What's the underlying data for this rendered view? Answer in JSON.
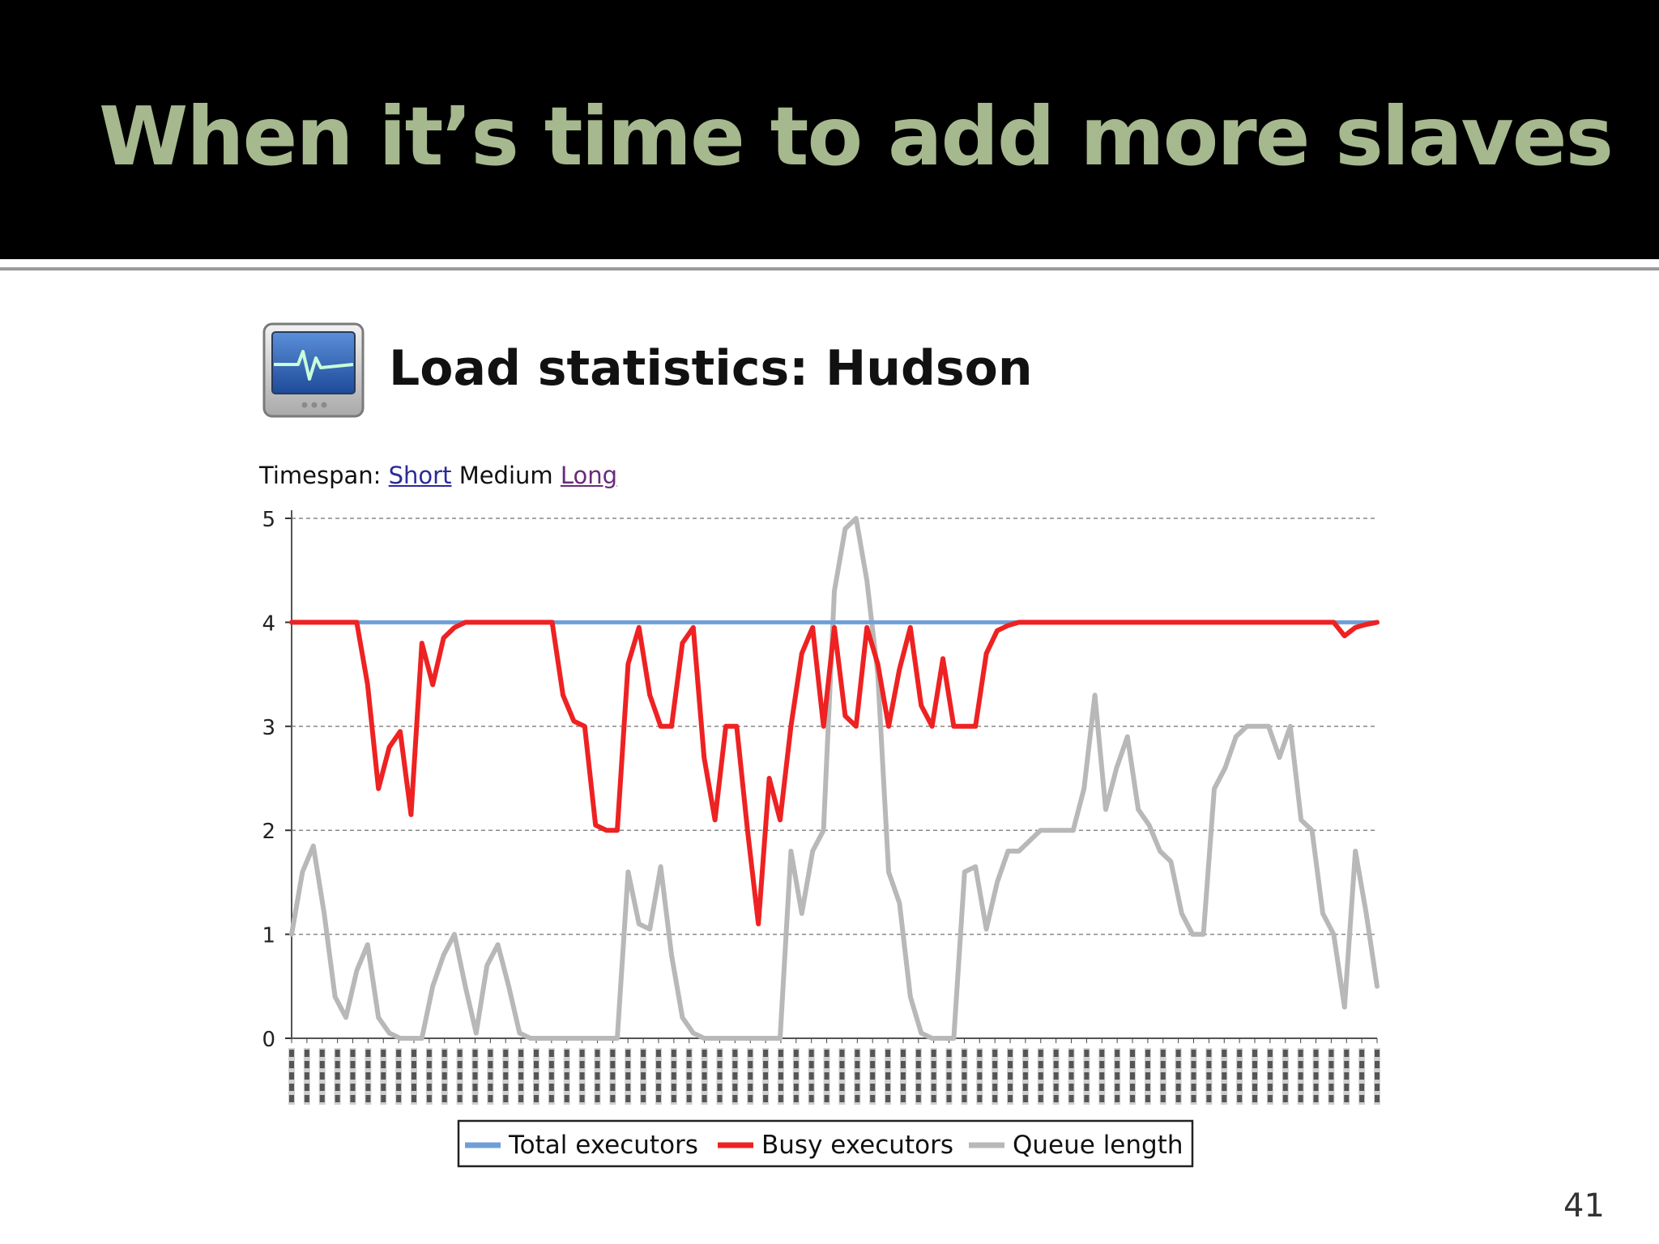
{
  "slide": {
    "title": "When it’s time to add more slaves",
    "page_number": "41"
  },
  "page": {
    "heading": "Load statistics: Hudson",
    "icon": "monitor-heartbeat-icon",
    "timespan_label": "Timespan:",
    "timespan_options": [
      "Short",
      "Medium",
      "Long"
    ],
    "timespan_selected": "Medium"
  },
  "chart_data": {
    "type": "line",
    "title": "",
    "xlabel": "",
    "ylabel": "",
    "ylim": [
      0,
      5
    ],
    "yticks": [
      0,
      1,
      2,
      3,
      4,
      5
    ],
    "grid": true,
    "legend_position": "bottom",
    "x_tick_labels_note": "hourly timestamps (rotated 90°, unreadable) from 17 to 17",
    "x": [
      0,
      1,
      2,
      3,
      4,
      5,
      6,
      7,
      8,
      9,
      10,
      11,
      12,
      13,
      14,
      15,
      16,
      17,
      18,
      19,
      20,
      21,
      22,
      23,
      24,
      25,
      26,
      27,
      28,
      29,
      30,
      31,
      32,
      33,
      34,
      35,
      36,
      37,
      38,
      39,
      40,
      41,
      42,
      43,
      44,
      45,
      46,
      47,
      48,
      49,
      50,
      51,
      52,
      53,
      54,
      55,
      56,
      57,
      58,
      59,
      60,
      61,
      62,
      63,
      64,
      65,
      66,
      67,
      68,
      69,
      70,
      71,
      72,
      73,
      74,
      75,
      76,
      77,
      78,
      79,
      80,
      81,
      82,
      83,
      84,
      85,
      86,
      87,
      88,
      89,
      90,
      91,
      92,
      93,
      94,
      95,
      96,
      97,
      98,
      99,
      100
    ],
    "series": [
      {
        "name": "Total executors",
        "color": "#6f9fd8",
        "values": [
          4,
          4,
          4,
          4,
          4,
          4,
          4,
          4,
          4,
          4,
          4,
          4,
          4,
          4,
          4,
          4,
          4,
          4,
          4,
          4,
          4,
          4,
          4,
          4,
          4,
          4,
          4,
          4,
          4,
          4,
          4,
          4,
          4,
          4,
          4,
          4,
          4,
          4,
          4,
          4,
          4,
          4,
          4,
          4,
          4,
          4,
          4,
          4,
          4,
          4,
          4,
          4,
          4,
          4,
          4,
          4,
          4,
          4,
          4,
          4,
          4,
          4,
          4,
          4,
          4,
          4,
          4,
          4,
          4,
          4,
          4,
          4,
          4,
          4,
          4,
          4,
          4,
          4,
          4,
          4,
          4,
          4,
          4,
          4,
          4,
          4,
          4,
          4,
          4,
          4,
          4,
          4,
          4,
          4,
          4,
          4,
          4,
          4,
          4,
          4,
          4
        ]
      },
      {
        "name": "Busy executors",
        "color": "#ee2222",
        "values": [
          4,
          4,
          4,
          4,
          4,
          4,
          4,
          3.4,
          2.4,
          2.8,
          2.95,
          2.15,
          3.8,
          3.4,
          3.85,
          3.95,
          4,
          4,
          4,
          4,
          4,
          4,
          4,
          4,
          4,
          3.3,
          3.05,
          3.0,
          2.05,
          2.0,
          2.0,
          3.6,
          3.95,
          3.3,
          3.0,
          3.0,
          3.8,
          3.95,
          2.7,
          2.1,
          3.0,
          3.0,
          2.0,
          1.1,
          2.5,
          2.1,
          3.0,
          3.7,
          3.95,
          3.0,
          3.95,
          3.1,
          3.0,
          3.95,
          3.6,
          3.0,
          3.55,
          3.95,
          3.2,
          3.0,
          3.65,
          3.0,
          3.0,
          3.0,
          3.7,
          3.92,
          3.97,
          4,
          4,
          4,
          4,
          4,
          4,
          4,
          4,
          4,
          4,
          4,
          4,
          4,
          4,
          4,
          4,
          4,
          4,
          4,
          4,
          4,
          4,
          4,
          4,
          4,
          4,
          4,
          4,
          4,
          4,
          3.87,
          3.95,
          3.98,
          4
        ]
      },
      {
        "name": "Queue length",
        "color": "#b8b8b8",
        "values": [
          1.0,
          1.6,
          1.85,
          1.2,
          0.4,
          0.2,
          0.65,
          0.9,
          0.2,
          0.05,
          0,
          0,
          0,
          0.5,
          0.8,
          1.0,
          0.5,
          0.05,
          0.7,
          0.9,
          0.5,
          0.05,
          0,
          0,
          0,
          0,
          0,
          0,
          0,
          0,
          0,
          1.6,
          1.1,
          1.05,
          1.65,
          0.8,
          0.2,
          0.05,
          0,
          0,
          0,
          0,
          0,
          0,
          0,
          0,
          1.8,
          1.2,
          1.8,
          2.0,
          4.3,
          4.9,
          5.0,
          4.4,
          3.5,
          1.6,
          1.3,
          0.4,
          0.05,
          0,
          0,
          0,
          1.6,
          1.65,
          1.05,
          1.5,
          1.8,
          1.8,
          1.9,
          2.0,
          2.0,
          2.0,
          2.0,
          2.4,
          3.3,
          2.2,
          2.6,
          2.9,
          2.2,
          2.05,
          1.8,
          1.7,
          1.2,
          1.0,
          1.0,
          2.4,
          2.6,
          2.9,
          3.0,
          3.0,
          3.0,
          2.7,
          3.0,
          2.1,
          2.0,
          1.2,
          1.0,
          0.3,
          1.8,
          1.2,
          0.5
        ]
      }
    ],
    "legend": [
      "Total executors",
      "Busy executors",
      "Queue length"
    ]
  }
}
